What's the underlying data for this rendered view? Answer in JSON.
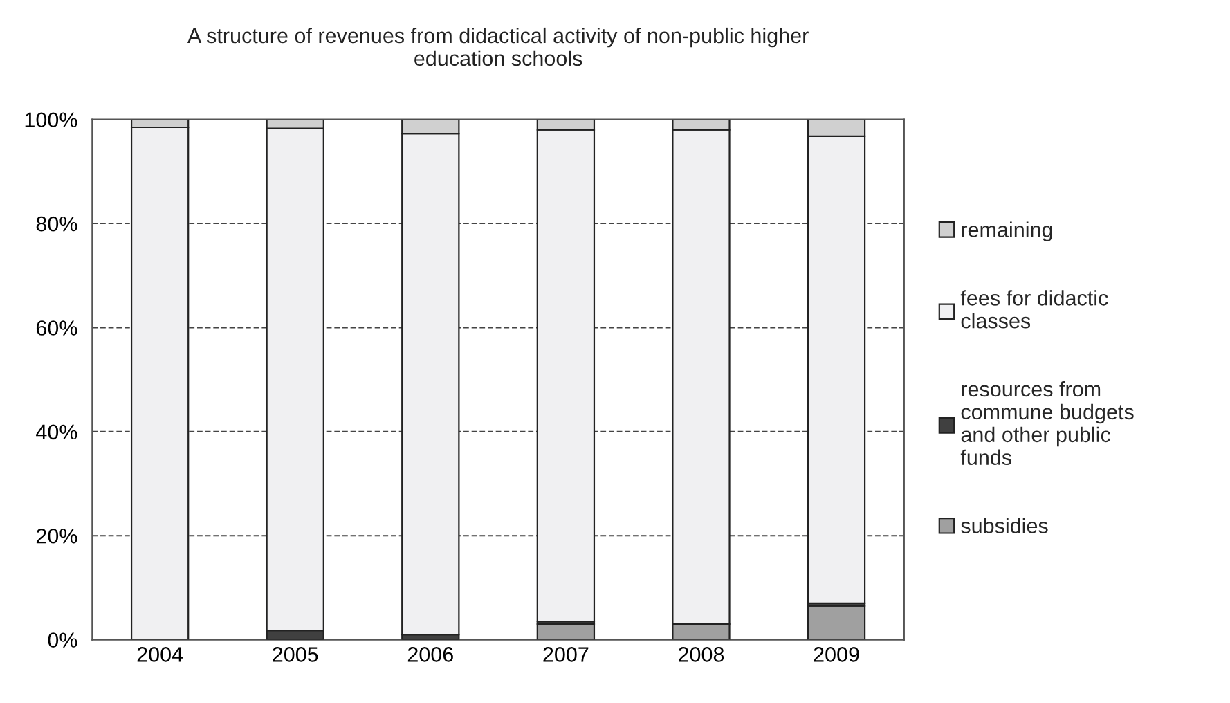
{
  "chart_data": {
    "type": "bar",
    "stacked": true,
    "title": "A structure of revenues from didactical activity of non-public higher\neducation schools",
    "categories": [
      "2004",
      "2005",
      "2006",
      "2007",
      "2008",
      "2009"
    ],
    "series": [
      {
        "name": "subsidies",
        "color": "#a0a0a0",
        "values": [
          0,
          0,
          0,
          3,
          3,
          6.5
        ]
      },
      {
        "name": "resources from\ncommune budgets\nand other public\nfunds",
        "color": "#404040",
        "values": [
          0,
          1.8,
          1,
          0.5,
          0,
          0.5
        ]
      },
      {
        "name": "fees for didactic\nclasses",
        "color": "#f0f0f2",
        "values": [
          98.5,
          96.5,
          96.3,
          94.5,
          95,
          89.8
        ]
      },
      {
        "name": "remaining",
        "color": "#d0d0d0",
        "values": [
          1.5,
          1.7,
          2.7,
          2,
          2,
          3.2
        ]
      }
    ],
    "ylim": [
      0,
      100
    ],
    "yticks": [
      {
        "value": 0,
        "label": "0%"
      },
      {
        "value": 20,
        "label": "20%"
      },
      {
        "value": 40,
        "label": "40%"
      },
      {
        "value": 60,
        "label": "60%"
      },
      {
        "value": 80,
        "label": "80%"
      },
      {
        "value": 100,
        "label": "100%"
      }
    ],
    "grid": "y",
    "legend": "right"
  }
}
